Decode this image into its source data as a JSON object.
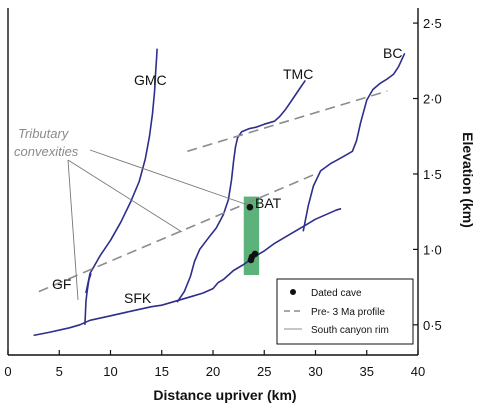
{
  "chart_data": {
    "type": "line",
    "xlabel": "Distance upriver (km)",
    "ylabel": "Elevation (km)",
    "xlim": [
      0,
      40
    ],
    "ylim": [
      0.3,
      2.6
    ],
    "x_ticks": [
      0,
      5,
      10,
      15,
      20,
      25,
      30,
      35,
      40
    ],
    "x_tick_labels": [
      "0",
      "5",
      "10",
      "15",
      "20",
      "25",
      "30",
      "35",
      "40"
    ],
    "y_ticks": [
      0.5,
      1.0,
      1.5,
      2.0,
      2.5
    ],
    "y_tick_labels": [
      "0·5",
      "1·0",
      "1·5",
      "2·0",
      "2·5"
    ],
    "y_axis_position": "right",
    "grid": false,
    "colors": {
      "river": "#2e2e8c",
      "profile": "#8c8c8c",
      "cave_box": "#5cb27a",
      "cave": "#111111"
    },
    "series": [
      {
        "name": "SFK",
        "kind": "river",
        "x": [
          2.5,
          4,
          6,
          7,
          8,
          10,
          12,
          14,
          15,
          16,
          17,
          18,
          19,
          20,
          20.5,
          21,
          22,
          23,
          24,
          25,
          26,
          27,
          28,
          29,
          30,
          31,
          32,
          32.5
        ],
        "y": [
          0.43,
          0.45,
          0.48,
          0.5,
          0.53,
          0.56,
          0.59,
          0.62,
          0.63,
          0.65,
          0.67,
          0.69,
          0.71,
          0.74,
          0.78,
          0.8,
          0.86,
          0.9,
          0.95,
          0.99,
          1.04,
          1.08,
          1.12,
          1.16,
          1.2,
          1.23,
          1.26,
          1.27
        ]
      },
      {
        "name": "GF",
        "kind": "river",
        "x": [
          7.5,
          7.55,
          7.6,
          7.7,
          7.8,
          7.9,
          8.1
        ],
        "y": [
          0.5,
          0.57,
          0.65,
          0.71,
          0.76,
          0.8,
          0.84
        ]
      },
      {
        "name": "GMC",
        "kind": "river",
        "x": [
          7.6,
          8,
          9,
          10,
          11,
          12,
          12.8,
          13.4,
          13.8,
          14.1,
          14.3,
          14.4,
          14.5,
          14.55
        ],
        "y": [
          0.71,
          0.84,
          0.96,
          1.06,
          1.18,
          1.32,
          1.45,
          1.6,
          1.75,
          1.9,
          2.05,
          2.17,
          2.27,
          2.33
        ]
      },
      {
        "name": "TMC",
        "kind": "river",
        "x": [
          16.5,
          17.2,
          17.8,
          18.2,
          18.7,
          19.6,
          20.3,
          21,
          21.5,
          21.8,
          22,
          22.2,
          22.4,
          22.8,
          23.5,
          24.2,
          25,
          26,
          26.5,
          27.1,
          27.8,
          28.5,
          29
        ],
        "y": [
          0.65,
          0.72,
          0.82,
          0.92,
          1.0,
          1.08,
          1.14,
          1.23,
          1.33,
          1.46,
          1.58,
          1.68,
          1.74,
          1.78,
          1.8,
          1.81,
          1.83,
          1.85,
          1.88,
          1.93,
          2.0,
          2.07,
          2.12
        ]
      },
      {
        "name": "BC",
        "kind": "river",
        "x": [
          28.8,
          29.3,
          29.8,
          30.5,
          31.5,
          32.3,
          33.1,
          33.6,
          34,
          34.4,
          35,
          35.6,
          36.3,
          37,
          37.6,
          38.1,
          38.5,
          38.7
        ],
        "y": [
          1.12,
          1.29,
          1.42,
          1.52,
          1.57,
          1.6,
          1.63,
          1.65,
          1.72,
          1.84,
          1.99,
          2.06,
          2.1,
          2.13,
          2.16,
          2.21,
          2.27,
          2.3
        ]
      },
      {
        "name": "Pre- 3 Ma profile",
        "kind": "profile",
        "x": [
          3,
          30
        ],
        "y": [
          0.72,
          1.5
        ]
      },
      {
        "name": "Pre- 3 Ma profile upper",
        "kind": "profile",
        "x": [
          17.5,
          37
        ],
        "y": [
          1.65,
          2.05
        ]
      }
    ],
    "cave_box": {
      "x": [
        23.0,
        24.5
      ],
      "y": [
        0.83,
        1.35
      ]
    },
    "dated_caves": {
      "x": [
        23.6,
        23.8,
        24.1,
        23.7
      ],
      "y": [
        1.28,
        0.95,
        0.97,
        0.93
      ]
    },
    "labels": {
      "GMC": "GMC",
      "TMC": "TMC",
      "BC": "BC",
      "BAT": "BAT",
      "GF": "GF",
      "SFK": "SFK",
      "tributary_1": "Tributary",
      "tributary_2": "convexities"
    },
    "legend": {
      "position": "bottom-right",
      "items": [
        {
          "symbol": "dot",
          "label": "Dated cave"
        },
        {
          "symbol": "dash",
          "label": "Pre- 3 Ma profile"
        },
        {
          "symbol": "line",
          "label": "South canyon rim"
        }
      ]
    }
  }
}
